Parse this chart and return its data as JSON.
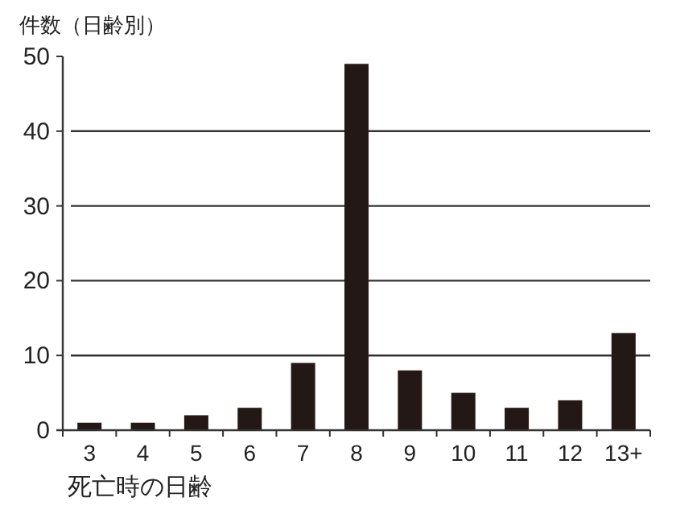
{
  "chart_data": {
    "type": "bar",
    "ylabel": "件数（日齢別）",
    "xlabel": "死亡時の日齢",
    "categories": [
      "3",
      "4",
      "5",
      "6",
      "7",
      "8",
      "9",
      "10",
      "11",
      "12",
      "13+"
    ],
    "values": [
      1,
      1,
      2,
      3,
      9,
      49,
      8,
      5,
      3,
      4,
      13
    ],
    "color": "#231815",
    "ylim": [
      0,
      50
    ],
    "yticks": [
      0,
      10,
      20,
      30,
      40,
      50
    ],
    "grid": "y"
  }
}
